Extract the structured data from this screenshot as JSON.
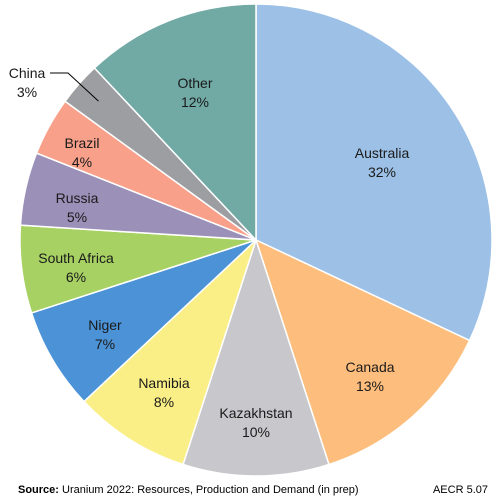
{
  "chart_data": {
    "type": "pie",
    "start_angle_deg": 0,
    "direction": "clockwise",
    "slices": [
      {
        "label": "Australia",
        "value": 32,
        "value_label": "32%",
        "color": "#9cc0e6"
      },
      {
        "label": "Canada",
        "value": 13,
        "value_label": "13%",
        "color": "#fdbd7c"
      },
      {
        "label": "Kazakhstan",
        "value": 10,
        "value_label": "10%",
        "color": "#c8c8cc"
      },
      {
        "label": "Namibia",
        "value": 8,
        "value_label": "8%",
        "color": "#faee86"
      },
      {
        "label": "Niger",
        "value": 7,
        "value_label": "7%",
        "color": "#4b93d6"
      },
      {
        "label": "South Africa",
        "value": 6,
        "value_label": "6%",
        "color": "#a8d164"
      },
      {
        "label": "Russia",
        "value": 5,
        "value_label": "5%",
        "color": "#9b90b8"
      },
      {
        "label": "Brazil",
        "value": 4,
        "value_label": "4%",
        "color": "#f8a08a"
      },
      {
        "label": "China",
        "value": 3,
        "value_label": "3%",
        "color": "#9c9ea2"
      },
      {
        "label": "Other",
        "value": 12,
        "value_label": "12%",
        "color": "#71aaa5"
      }
    ]
  },
  "footer": {
    "source_label": "Source:",
    "source_text": "Uranium 2022: Resources, Production and Demand (in prep)",
    "code": "AECR 5.07"
  }
}
